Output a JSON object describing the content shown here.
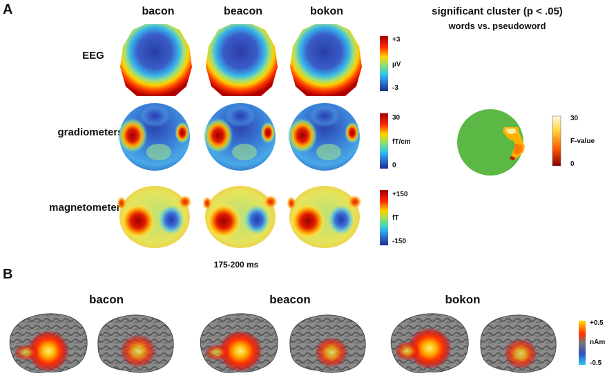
{
  "panelA": {
    "letter": "A",
    "columns": [
      "bacon",
      "beacon",
      "bokon"
    ],
    "rows": [
      {
        "label": "EEG",
        "cb_top": "+3",
        "cb_mid": "µV",
        "cb_bot": "-3"
      },
      {
        "label": "gradiometers",
        "cb_top": "30",
        "cb_mid": "fT/cm",
        "cb_bot": "0"
      },
      {
        "label": "magnetometers",
        "cb_top": "+150",
        "cb_mid": "fT",
        "cb_bot": "-150"
      }
    ],
    "time_label": "175-200 ms",
    "significance": {
      "title": "significant cluster (p < .05)",
      "subtitle": "words vs. pseudoword",
      "cb_top": "30",
      "cb_mid": "F-value",
      "cb_bot": "0"
    }
  },
  "panelB": {
    "letter": "B",
    "columns": [
      "bacon",
      "beacon",
      "bokon"
    ],
    "cb_top": "+0.5",
    "cb_mid": "nAm",
    "cb_bot": "-0.5"
  },
  "colors": {
    "jet_dark_red": "#b30000",
    "jet_blue": "#1f3fa8",
    "sig_green": "#5cb845",
    "brain_gray": "#6e6e6e"
  }
}
